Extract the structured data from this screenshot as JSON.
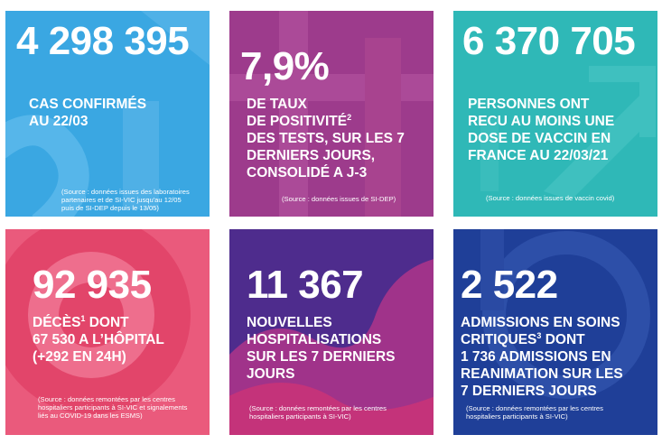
{
  "tiles": [
    {
      "value": "4 298 395",
      "label_lines": [
        "CAS CONFIRMÉS",
        "AU 22/03"
      ],
      "source_lines": [
        "(Source : données issues des laboratoires",
        "partenaires et de SI-VIC jusqu'au 12/05",
        "puis de SI-DEP depuis le 13/05)"
      ],
      "color": "#3aa7e2"
    },
    {
      "value": "7,9%",
      "label_line1": "DE TAUX",
      "label_line2": "DE POSITIVITÉ",
      "label_line2_sup": "2",
      "label_lines_rest": [
        "DES TESTS, SUR LES 7",
        "DERNIERS JOURS,",
        "CONSOLIDÉ A J-3"
      ],
      "source": "(Source : données issues de SI-DEP)",
      "color": "#9d3b8c"
    },
    {
      "value": "6 370 705",
      "label_lines": [
        "PERSONNES ONT",
        "RECU AU MOINS UNE",
        "DOSE DE VACCIN EN",
        "FRANCE AU 22/03/21"
      ],
      "source": "(Source : données issues de vaccin covid)",
      "color": "#2fb8b7"
    },
    {
      "value": "92 935",
      "label_line1": "DÉCÈS",
      "label_line1_sup": "1",
      "label_line1_rest": " DONT",
      "label_lines_rest": [
        "67 530 A L’HÔPITAL",
        "(+292 EN 24H)"
      ],
      "source_lines": [
        "(Source : données remontées par les centres",
        "hospitaliers participants à SI-VIC et signalements",
        "liés au COVID-19 dans les ESMS)"
      ],
      "color": "#ea5a7c"
    },
    {
      "value": "11 367",
      "label_lines": [
        "NOUVELLES",
        "HOSPITALISATIONS",
        "SUR LES 7 DERNIERS",
        "JOURS"
      ],
      "source_lines": [
        "(Source : données remontées par les centres",
        "hospitaliers participants à SI-VIC)"
      ],
      "color": "#4e2c8d"
    },
    {
      "value": "2 522",
      "label_line1": "ADMISSIONS EN SOINS",
      "label_line2": "CRITIQUES",
      "label_line2_sup": "3",
      "label_line2_rest": " DONT",
      "label_lines_rest": [
        "1 736 ADMISSIONS EN",
        "REANIMATION SUR LES",
        "7 DERNIERS JOURS"
      ],
      "source_lines": [
        "(Source : données remontées par les centres",
        "hospitaliers participants à SI-VIC)"
      ],
      "color": "#1f3f98"
    }
  ]
}
